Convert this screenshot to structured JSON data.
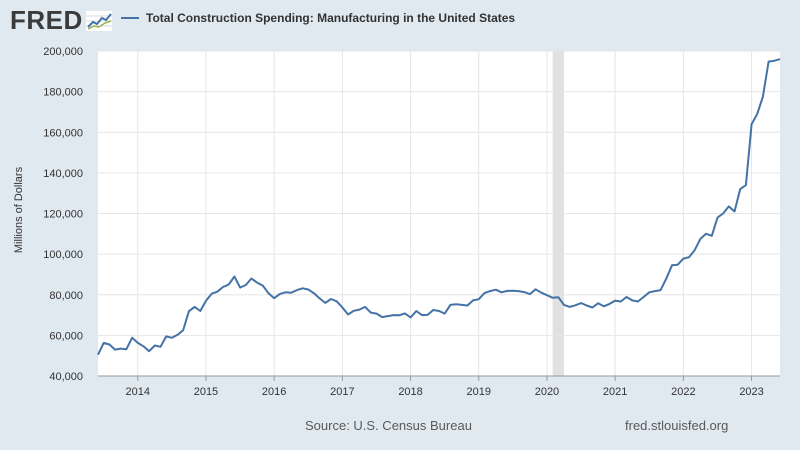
{
  "header": {
    "logo_text": "FRED",
    "logo_icon": "fred-line-graph-icon",
    "legend_label": "Total Construction Spending: Manufacturing in the United States"
  },
  "footer": {
    "source": "Source: U.S. Census Bureau",
    "url": "fred.stlouisfed.org"
  },
  "colors": {
    "background": "#e1e9f0",
    "plot_background": "#ffffff",
    "series": "#4572a7",
    "recession": "#e1e1e1",
    "grid": "#e6e6e6"
  },
  "chart_data": {
    "type": "line",
    "title": "Total Construction Spending: Manufacturing in the United States",
    "xlabel": "",
    "ylabel": "Millions of Dollars",
    "ylim": [
      40000,
      200000
    ],
    "xlim": [
      2013.417,
      2023.417
    ],
    "yticks": [
      40000,
      60000,
      80000,
      100000,
      120000,
      140000,
      160000,
      180000,
      200000
    ],
    "ytick_labels": [
      "40,000",
      "60,000",
      "80,000",
      "100,000",
      "120,000",
      "140,000",
      "160,000",
      "180,000",
      "200,000"
    ],
    "xticks": [
      2014,
      2015,
      2016,
      2017,
      2018,
      2019,
      2020,
      2021,
      2022,
      2023
    ],
    "xtick_labels": [
      "2014",
      "2015",
      "2016",
      "2017",
      "2018",
      "2019",
      "2020",
      "2021",
      "2022",
      "2023"
    ],
    "grid": true,
    "legend": "top-left",
    "recessions": [
      [
        2020.083,
        2020.25
      ]
    ],
    "series": [
      {
        "name": "Total Construction Spending: Manufacturing in the United States",
        "start": 2013.417,
        "step": 0.08333,
        "values": [
          50500,
          56300,
          55500,
          53000,
          53500,
          53200,
          58800,
          56300,
          54600,
          52200,
          55000,
          54400,
          59500,
          58800,
          60300,
          62600,
          71900,
          74000,
          72000,
          77000,
          80500,
          81500,
          83800,
          85000,
          89000,
          83500,
          84800,
          88000,
          86000,
          84500,
          80700,
          78300,
          80400,
          81200,
          81000,
          82300,
          83200,
          82600,
          80700,
          78200,
          76000,
          77900,
          76800,
          73700,
          70300,
          72100,
          72700,
          74000,
          71200,
          70700,
          69000,
          69500,
          70000,
          69900,
          70800,
          68800,
          72000,
          70000,
          70100,
          72500,
          72000,
          70700,
          75000,
          75300,
          75000,
          74700,
          77200,
          77800,
          80800,
          81800,
          82500,
          81200,
          81900,
          82000,
          81800,
          81300,
          80300,
          82700,
          81000,
          79800,
          78500,
          78800,
          75000,
          74000,
          74800,
          75900,
          74700,
          73700,
          75800,
          74300,
          75500,
          77100,
          76700,
          78900,
          77200,
          76700,
          78900,
          81200,
          81800,
          82300,
          88000,
          94500,
          94800,
          97800,
          98500,
          102000,
          107500,
          110000,
          109000,
          118000,
          120000,
          123500,
          121000,
          132000,
          134000,
          164000,
          169000,
          177500,
          194800,
          195200,
          196000
        ]
      }
    ]
  }
}
